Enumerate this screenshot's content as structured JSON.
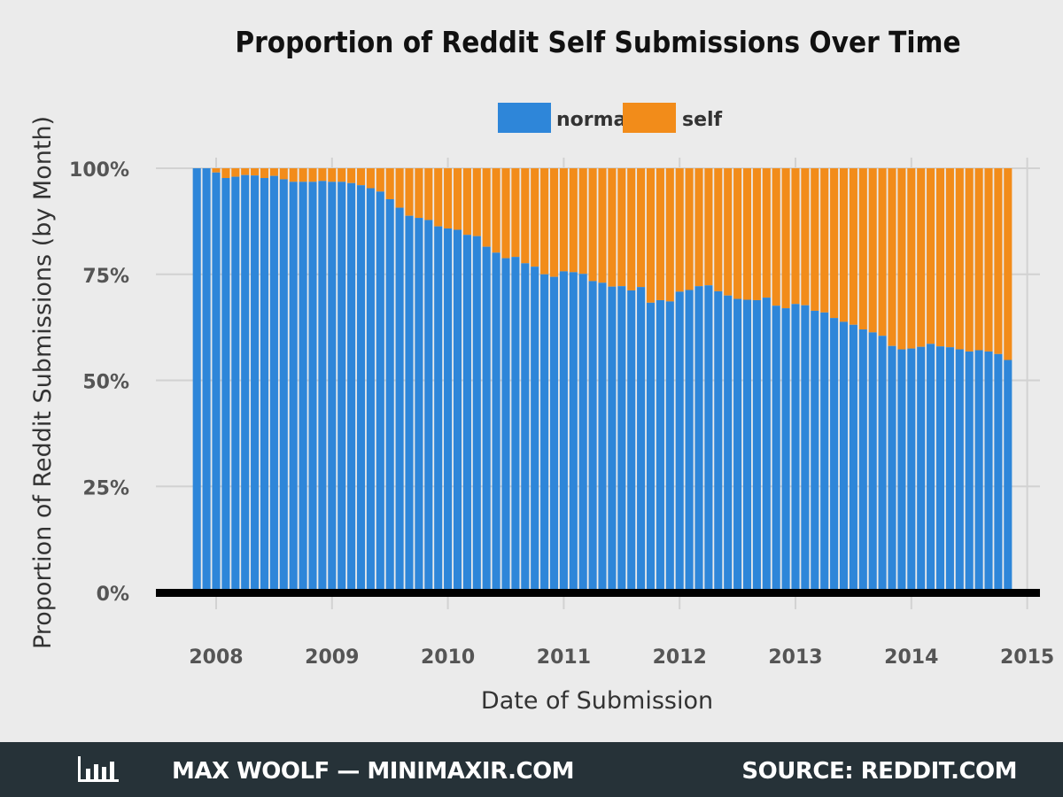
{
  "chart_data": {
    "type": "bar",
    "stacked": true,
    "title": "Proportion of Reddit Self Submissions Over Time",
    "xlabel": "Date of Submission",
    "ylabel": "Proportion of Reddit Submissions (by Month)",
    "x_ticks": [
      "2008",
      "2009",
      "2010",
      "2011",
      "2012",
      "2013",
      "2014",
      "2015"
    ],
    "y_ticks": [
      "0%",
      "25%",
      "50%",
      "75%",
      "100%"
    ],
    "ylim": [
      0,
      1
    ],
    "xlim": [
      "2007-06",
      "2015-03"
    ],
    "legend": {
      "position": "top",
      "entries": [
        "normal",
        "self"
      ]
    },
    "grid": true,
    "start_month": "2007-11",
    "series": [
      {
        "name": "normal",
        "color": "#2e86d9",
        "values": [
          1.0,
          1.0,
          0.99,
          0.977,
          0.98,
          0.984,
          0.983,
          0.977,
          0.982,
          0.974,
          0.968,
          0.968,
          0.968,
          0.97,
          0.968,
          0.968,
          0.965,
          0.96,
          0.953,
          0.945,
          0.927,
          0.907,
          0.888,
          0.883,
          0.878,
          0.863,
          0.858,
          0.855,
          0.843,
          0.84,
          0.815,
          0.801,
          0.788,
          0.791,
          0.776,
          0.768,
          0.75,
          0.744,
          0.757,
          0.755,
          0.751,
          0.734,
          0.73,
          0.721,
          0.722,
          0.712,
          0.72,
          0.683,
          0.689,
          0.686,
          0.709,
          0.713,
          0.722,
          0.724,
          0.71,
          0.7,
          0.692,
          0.69,
          0.689,
          0.695,
          0.676,
          0.67,
          0.68,
          0.677,
          0.664,
          0.66,
          0.647,
          0.638,
          0.631,
          0.62,
          0.613,
          0.605,
          0.581,
          0.573,
          0.575,
          0.579,
          0.586,
          0.58,
          0.578,
          0.573,
          0.568,
          0.571,
          0.568,
          0.562,
          0.548
        ]
      },
      {
        "name": "self",
        "color": "#f28c1a",
        "values": [
          0.0,
          0.0,
          0.01,
          0.023,
          0.02,
          0.016,
          0.017,
          0.023,
          0.018,
          0.026,
          0.032,
          0.032,
          0.032,
          0.03,
          0.032,
          0.032,
          0.035,
          0.04,
          0.047,
          0.055,
          0.073,
          0.093,
          0.112,
          0.117,
          0.122,
          0.137,
          0.142,
          0.145,
          0.157,
          0.16,
          0.185,
          0.199,
          0.212,
          0.209,
          0.224,
          0.232,
          0.25,
          0.256,
          0.243,
          0.245,
          0.249,
          0.266,
          0.27,
          0.279,
          0.278,
          0.288,
          0.28,
          0.317,
          0.311,
          0.314,
          0.291,
          0.287,
          0.278,
          0.276,
          0.29,
          0.3,
          0.308,
          0.31,
          0.311,
          0.305,
          0.324,
          0.33,
          0.32,
          0.323,
          0.336,
          0.34,
          0.353,
          0.362,
          0.369,
          0.38,
          0.387,
          0.395,
          0.419,
          0.427,
          0.425,
          0.421,
          0.414,
          0.42,
          0.422,
          0.427,
          0.432,
          0.429,
          0.432,
          0.438,
          0.452
        ]
      }
    ]
  },
  "footer": {
    "left_text": "MAX WOOLF — MINIMAXIR.COM",
    "right_text": "SOURCE: REDDIT.COM",
    "icon": "bar-chart-icon",
    "background": "#263238"
  }
}
